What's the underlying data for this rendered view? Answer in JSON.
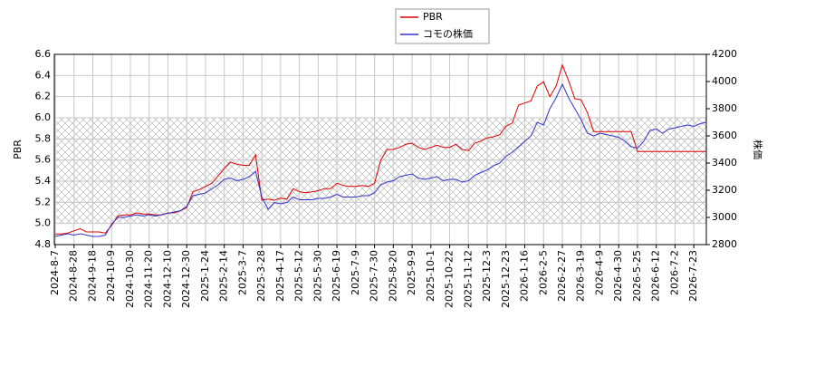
{
  "chart_data": {
    "type": "line",
    "ylabel": "PBR",
    "y2label": "株価",
    "categories": [
      "2024-8-7",
      null,
      null,
      "2024-8-28",
      null,
      null,
      "2024-9-18",
      null,
      null,
      "2024-10-9",
      null,
      null,
      "2024-10-30",
      null,
      null,
      "2024-11-20",
      null,
      null,
      "2024-12-10",
      null,
      null,
      "2024-12-30",
      null,
      null,
      "2025-1-24",
      null,
      null,
      "2025-2-14",
      null,
      null,
      "2025-3-7",
      null,
      null,
      "2025-3-28",
      null,
      null,
      "2025-4-17",
      null,
      null,
      "2025-5-12",
      null,
      null,
      "2025-5-30",
      null,
      null,
      "2025-6-19",
      null,
      null,
      "2025-7-9",
      null,
      null,
      "2025-7-30",
      null,
      null,
      "2025-8-20",
      null,
      null,
      "2025-9-9",
      null,
      null,
      "2025-10-1",
      null,
      null,
      "2025-10-22",
      null,
      null,
      "2025-11-12",
      null,
      null,
      "2025-12-3",
      null,
      null,
      "2025-12-23",
      null,
      null,
      "2026-1-16",
      null,
      null,
      "2026-2-5",
      null,
      null,
      "2026-2-27",
      null,
      null,
      "2026-3-19",
      null,
      null,
      "2026-4-9",
      null,
      null,
      "2026-4-30",
      null,
      null,
      "2026-5-25",
      null,
      null,
      "2026-6-12",
      null,
      null,
      "2026-7-2",
      null,
      null,
      "2026-7-23",
      null,
      null
    ],
    "series": [
      {
        "name": "PBR",
        "color": "#dd0000",
        "values": [
          4.9,
          4.9,
          4.91,
          4.93,
          4.95,
          4.92,
          4.92,
          4.92,
          4.91,
          4.98,
          5.07,
          5.08,
          5.08,
          5.1,
          5.09,
          5.09,
          5.08,
          5.08,
          5.1,
          5.1,
          5.12,
          5.15,
          5.3,
          5.32,
          5.35,
          5.38,
          5.45,
          5.52,
          5.58,
          5.56,
          5.55,
          5.55,
          5.65,
          5.22,
          5.23,
          5.22,
          5.24,
          5.23,
          5.33,
          5.3,
          5.29,
          5.3,
          5.31,
          5.33,
          5.33,
          5.38,
          5.36,
          5.35,
          5.35,
          5.36,
          5.35,
          5.38,
          5.6,
          5.7,
          5.7,
          5.72,
          5.75,
          5.76,
          5.72,
          5.7,
          5.72,
          5.74,
          5.72,
          5.72,
          5.75,
          5.7,
          5.69,
          5.76,
          5.78,
          5.81,
          5.82,
          5.84,
          5.92,
          5.95,
          6.12,
          6.14,
          6.16,
          6.3,
          6.34,
          6.2,
          6.3,
          6.5,
          6.35,
          6.18,
          6.17,
          6.05,
          5.87,
          5.87,
          5.87,
          5.87,
          5.87,
          5.87,
          5.87,
          5.68,
          5.68,
          5.68,
          5.68,
          5.68,
          5.68,
          5.68,
          5.68,
          5.68,
          5.68,
          5.68,
          5.68
        ]
      },
      {
        "name": "コモの株価",
        "color": "#3333cc",
        "axis": "y2",
        "values": [
          2860,
          2870,
          2880,
          2870,
          2880,
          2870,
          2860,
          2860,
          2870,
          2950,
          3000,
          3000,
          3010,
          3020,
          3010,
          3020,
          3010,
          3020,
          3030,
          3040,
          3050,
          3080,
          3160,
          3170,
          3180,
          3210,
          3240,
          3280,
          3290,
          3270,
          3280,
          3300,
          3340,
          3150,
          3060,
          3110,
          3100,
          3110,
          3150,
          3130,
          3130,
          3130,
          3140,
          3140,
          3150,
          3170,
          3150,
          3150,
          3150,
          3160,
          3160,
          3180,
          3240,
          3260,
          3270,
          3300,
          3310,
          3320,
          3290,
          3280,
          3290,
          3300,
          3270,
          3280,
          3280,
          3260,
          3270,
          3310,
          3330,
          3350,
          3380,
          3400,
          3450,
          3480,
          3520,
          3560,
          3600,
          3700,
          3680,
          3800,
          3880,
          3980,
          3880,
          3800,
          3720,
          3620,
          3600,
          3620,
          3610,
          3600,
          3590,
          3560,
          3520,
          3510,
          3560,
          3640,
          3650,
          3620,
          3650,
          3660,
          3670,
          3680,
          3670,
          3690,
          3700
        ]
      }
    ],
    "ylim": [
      4.8,
      6.6
    ],
    "yticks": [
      4.8,
      {
        "value": 5.0,
        "label": "5.0"
      },
      5.2,
      5.4,
      5.6,
      5.8,
      {
        "value": 6.0,
        "label": "6.0"
      },
      6.2,
      6.4,
      6.6
    ],
    "y2lim": [
      2800,
      4200
    ],
    "y2ticks": [
      2800,
      3000,
      3200,
      3400,
      3600,
      3800,
      4000,
      4200
    ],
    "hatch_band": [
      5.0,
      6.0
    ],
    "grid": true
  }
}
